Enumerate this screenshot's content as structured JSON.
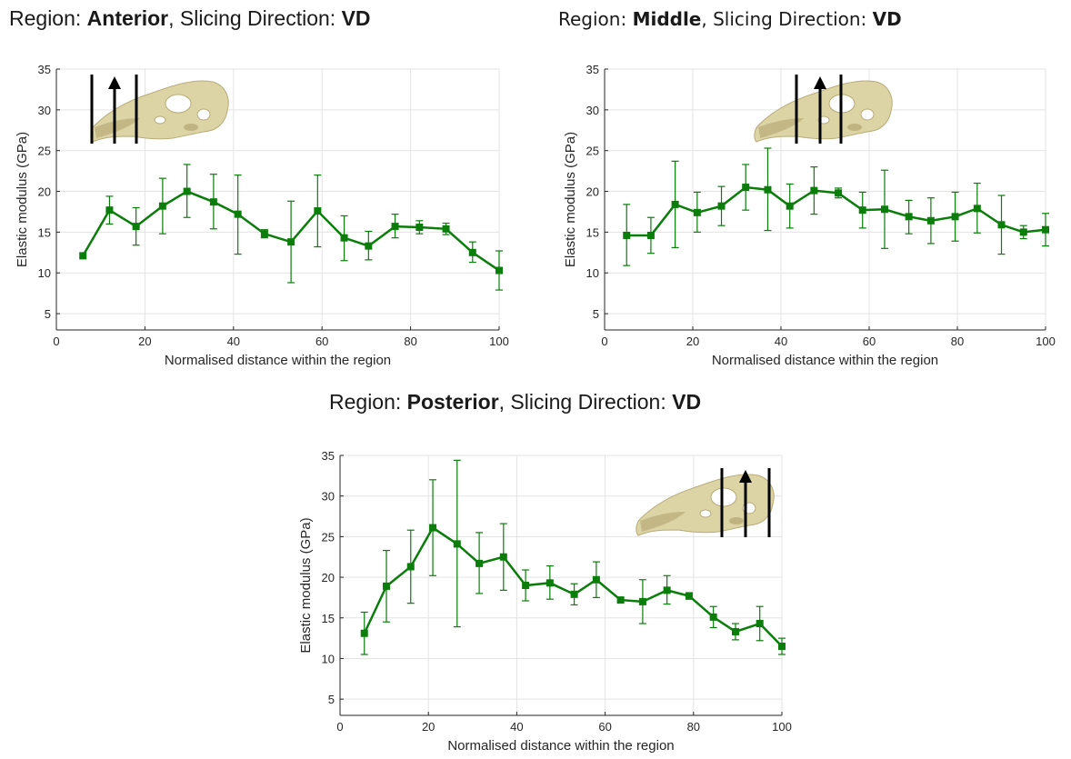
{
  "titles": {
    "anterior": {
      "prefix": "Region: ",
      "region": "Anterior",
      "middle": ", Slicing Direction: ",
      "dir": "VD"
    },
    "middle": {
      "prefix": "Region: ",
      "region": "Middle",
      "middle": ", Slicing Direction: ",
      "dir": "VD"
    },
    "posterior": {
      "prefix": "Region: ",
      "region": "Posterior",
      "middle": ", Slicing Direction: ",
      "dir": "VD"
    }
  },
  "colors": {
    "series": "#0a7d0a",
    "grid": "#e3e3e3",
    "axis": "#262626",
    "skull": "#ddd4a6",
    "skull_shade": "#b8ab78",
    "slice_lines": "#000000"
  },
  "icons": [
    "skull-icon",
    "slice-line-icon",
    "up-arrow-icon"
  ],
  "chart_data": [
    {
      "type": "line",
      "region": "Anterior",
      "xlabel": "Normalised distance within the region",
      "ylabel": "Elastic modulus (GPa)",
      "xlim": [
        0,
        100
      ],
      "ylim": [
        3,
        35
      ],
      "xticks": [
        0,
        20,
        40,
        60,
        80,
        100
      ],
      "yticks": [
        5,
        10,
        15,
        20,
        25,
        30,
        35
      ],
      "grid": true,
      "inset": "skull with slicing lines, top-left",
      "series": [
        {
          "x": [
            6,
            12,
            18,
            24,
            29.5,
            35.5,
            41,
            47,
            53,
            59,
            65,
            70.5,
            76.5,
            82,
            88,
            94,
            100
          ],
          "y": [
            12.1,
            17.7,
            15.7,
            18.2,
            20.0,
            18.7,
            17.2,
            14.8,
            13.8,
            17.6,
            14.3,
            13.3,
            15.7,
            15.6,
            15.4,
            12.5,
            10.3
          ],
          "err_low": [
            0,
            1.7,
            2.3,
            3.4,
            3.2,
            3.3,
            4.9,
            0.5,
            5.0,
            4.4,
            2.8,
            1.7,
            1.4,
            0.8,
            0.7,
            1.2,
            2.4
          ],
          "err_high": [
            0,
            1.7,
            2.3,
            3.4,
            3.3,
            3.4,
            4.8,
            0.5,
            5.0,
            4.4,
            2.7,
            1.8,
            1.5,
            0.8,
            0.7,
            1.3,
            2.4
          ]
        }
      ]
    },
    {
      "type": "line",
      "region": "Middle",
      "xlabel": "Normalised distance within the region",
      "ylabel": "Elastic modulus (GPa)",
      "xlim": [
        0,
        100
      ],
      "ylim": [
        3,
        35
      ],
      "xticks": [
        0,
        20,
        40,
        60,
        80,
        100
      ],
      "yticks": [
        5,
        10,
        15,
        20,
        25,
        30,
        35
      ],
      "grid": true,
      "inset": "skull with slicing lines, top-center",
      "series": [
        {
          "x": [
            5,
            10.5,
            16,
            21,
            26.5,
            32,
            37,
            42,
            47.5,
            53,
            58.5,
            63.5,
            69,
            74,
            79.5,
            84.5,
            90,
            95,
            100
          ],
          "y": [
            14.6,
            14.6,
            18.4,
            17.4,
            18.2,
            20.5,
            20.2,
            18.2,
            20.1,
            19.8,
            17.7,
            17.8,
            16.9,
            16.4,
            16.9,
            17.9,
            15.9,
            15.0,
            15.3
          ],
          "err_low": [
            3.7,
            2.2,
            5.3,
            2.4,
            2.4,
            2.8,
            5.0,
            2.7,
            2.9,
            0.6,
            2.2,
            4.8,
            2.1,
            2.8,
            3.0,
            3.0,
            3.6,
            0.8,
            2.0
          ],
          "err_high": [
            3.8,
            2.2,
            5.3,
            2.5,
            2.4,
            2.8,
            5.1,
            2.7,
            2.9,
            0.6,
            2.2,
            4.8,
            2.0,
            2.8,
            3.0,
            3.1,
            3.6,
            0.8,
            2.0
          ]
        }
      ]
    },
    {
      "type": "line",
      "region": "Posterior",
      "xlabel": "Normalised distance within the region",
      "ylabel": "Elastic modulus (GPa)",
      "xlim": [
        0,
        100
      ],
      "ylim": [
        3,
        35
      ],
      "xticks": [
        0,
        20,
        40,
        60,
        80,
        100
      ],
      "yticks": [
        5,
        10,
        15,
        20,
        25,
        30,
        35
      ],
      "grid": true,
      "inset": "skull with slicing lines, top-right",
      "series": [
        {
          "x": [
            5.5,
            10.5,
            16,
            21,
            26.5,
            31.5,
            37,
            42,
            47.5,
            53,
            58,
            63.5,
            68.5,
            74,
            79,
            84.5,
            89.5,
            95,
            100
          ],
          "y": [
            13.1,
            18.9,
            21.3,
            26.1,
            24.1,
            21.7,
            22.5,
            19.0,
            19.3,
            17.9,
            19.7,
            17.2,
            17.0,
            18.4,
            17.7,
            15.1,
            13.3,
            14.3,
            11.5
          ],
          "err_low": [
            2.6,
            4.4,
            4.5,
            5.9,
            10.2,
            3.7,
            4.1,
            1.9,
            2.0,
            1.3,
            2.2,
            0.3,
            2.7,
            1.7,
            0.4,
            1.3,
            1.0,
            2.1,
            1.0
          ],
          "err_high": [
            2.6,
            4.4,
            4.5,
            5.9,
            10.3,
            3.8,
            4.1,
            1.9,
            2.1,
            1.3,
            2.2,
            0.3,
            2.7,
            1.8,
            0.4,
            1.3,
            1.0,
            2.1,
            1.0
          ]
        }
      ]
    }
  ]
}
